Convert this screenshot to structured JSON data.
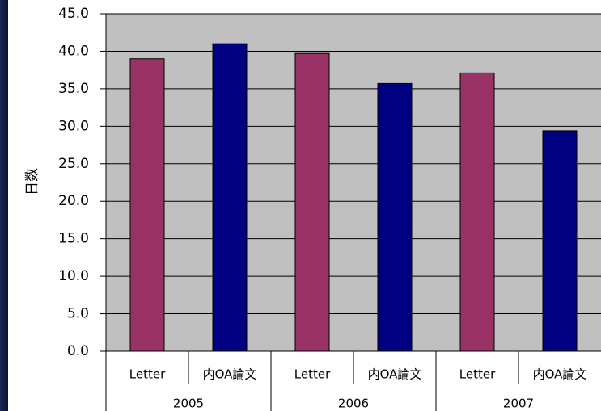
{
  "chart_data": {
    "type": "bar",
    "y_label": "日数",
    "categories": [
      "Letter",
      "内OA論文",
      "Letter",
      "内OA論文",
      "Letter",
      "内OA論文"
    ],
    "groups": [
      "2005",
      "2006",
      "2007"
    ],
    "values": [
      39.0,
      41.0,
      39.7,
      35.7,
      37.1,
      29.4
    ],
    "colors": [
      "#993366",
      "#000080",
      "#993366",
      "#000080",
      "#993366",
      "#000080"
    ],
    "ylim": [
      0,
      45
    ],
    "yticks": [
      {
        "value": 0,
        "label": "0.0"
      },
      {
        "value": 5,
        "label": "5.0"
      },
      {
        "value": 10,
        "label": "10.0"
      },
      {
        "value": 15,
        "label": "15.0"
      },
      {
        "value": 20,
        "label": "20.0"
      },
      {
        "value": 25,
        "label": "25.0"
      },
      {
        "value": 30,
        "label": "30.0"
      },
      {
        "value": 35,
        "label": "35.0"
      },
      {
        "value": 40,
        "label": "40.0"
      },
      {
        "value": 45,
        "label": "45.0"
      }
    ],
    "grid": true
  }
}
